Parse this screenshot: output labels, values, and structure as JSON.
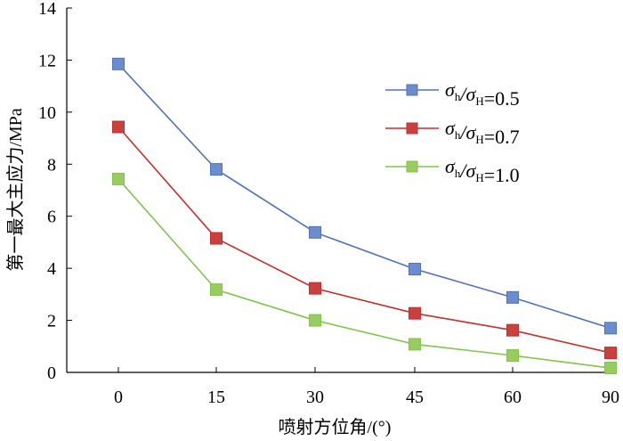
{
  "chart_data": {
    "type": "line",
    "title": "",
    "xlabel": "喷射方位角/(°)",
    "ylabel": "第一最大主应力/MPa",
    "categories": [
      "0",
      "15",
      "30",
      "45",
      "60",
      "90"
    ],
    "ylim": [
      0,
      14
    ],
    "yticks": [
      "0",
      "2",
      "4",
      "6",
      "8",
      "10",
      "12",
      "14"
    ],
    "grid": false,
    "legend_position": "right",
    "series": [
      {
        "name": "σh/σH=0.5",
        "label_main": "σ",
        "label_sub1": "h",
        "label_mid": "/σ",
        "label_sub2": "H",
        "label_tail": "=0.5",
        "color": "#4f73b3",
        "fill": "#6b8ccf",
        "values": [
          11.85,
          7.8,
          5.38,
          3.97,
          2.88,
          1.7
        ]
      },
      {
        "name": "σh/σH=0.7",
        "label_main": "σ",
        "label_sub1": "h",
        "label_mid": "/σ",
        "label_sub2": "H",
        "label_tail": "=0.7",
        "color": "#c0302e",
        "fill": "#c8413f",
        "values": [
          9.43,
          5.15,
          3.23,
          2.27,
          1.62,
          0.75
        ]
      },
      {
        "name": "σh/σH=1.0",
        "label_main": "σ",
        "label_sub1": "h",
        "label_mid": "/σ",
        "label_sub2": "H",
        "label_tail": "=1.0",
        "color": "#84c24f",
        "fill": "#97cc5e",
        "values": [
          7.43,
          3.18,
          2.0,
          1.08,
          0.65,
          0.17
        ]
      }
    ]
  }
}
